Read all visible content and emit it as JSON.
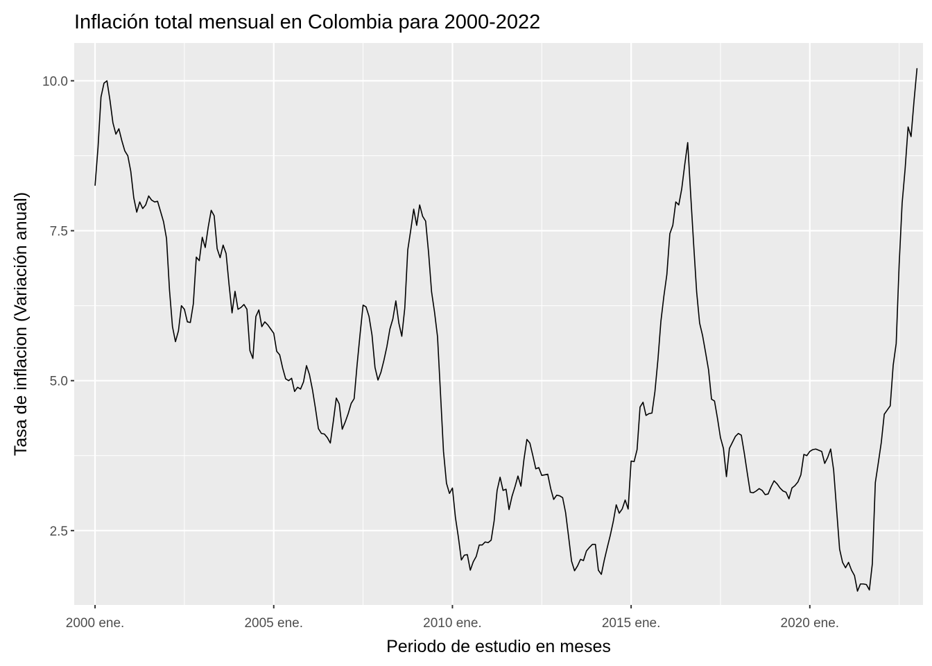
{
  "chart_data": {
    "type": "line",
    "title": "Inflación total mensual en Colombia para 2000-2022",
    "xlabel": "Periodo de estudio en meses",
    "ylabel": "Tasa de inflacion (Variación anual)",
    "x_start": "2000-01",
    "x_ticks": [
      {
        "year": 2000,
        "label": "2000 ene."
      },
      {
        "year": 2005,
        "label": "2005 ene."
      },
      {
        "year": 2010,
        "label": "2010 ene."
      },
      {
        "year": 2015,
        "label": "2015 ene."
      },
      {
        "year": 2020,
        "label": "2020 ene."
      }
    ],
    "y_ticks": [
      {
        "value": 2.5,
        "label": "2.5"
      },
      {
        "value": 5.0,
        "label": "5.0"
      },
      {
        "value": 7.5,
        "label": "7.5"
      },
      {
        "value": 10.0,
        "label": "10.0"
      }
    ],
    "xlim": [
      "1999-06",
      "2023-03"
    ],
    "ylim": [
      1.26,
      10.63
    ],
    "grid": true,
    "panel_background": "#EBEBEB",
    "grid_color": "#FFFFFF",
    "line_color": "#000000",
    "series": [
      {
        "values": [
          8.25,
          8.89,
          9.73,
          9.96,
          10.0,
          9.68,
          9.3,
          9.11,
          9.2,
          9.0,
          8.83,
          8.75,
          8.49,
          8.05,
          7.81,
          7.98,
          7.87,
          7.93,
          8.08,
          8.01,
          7.98,
          7.99,
          7.82,
          7.65,
          7.37,
          6.51,
          5.9,
          5.65,
          5.83,
          6.25,
          6.19,
          5.98,
          5.97,
          6.28,
          7.06,
          7.0,
          7.39,
          7.22,
          7.56,
          7.84,
          7.75,
          7.2,
          7.05,
          7.26,
          7.12,
          6.6,
          6.13,
          6.49,
          6.19,
          6.22,
          6.27,
          6.19,
          5.5,
          5.37,
          6.07,
          6.18,
          5.9,
          5.98,
          5.93,
          5.86,
          5.79,
          5.49,
          5.43,
          5.21,
          5.03,
          5.0,
          5.04,
          4.82,
          4.89,
          4.86,
          4.98,
          5.25,
          5.1,
          4.85,
          4.54,
          4.2,
          4.12,
          4.11,
          4.05,
          3.96,
          4.32,
          4.71,
          4.61,
          4.19,
          4.31,
          4.45,
          4.62,
          4.7,
          5.27,
          5.78,
          6.26,
          6.23,
          6.07,
          5.76,
          5.22,
          5.01,
          5.14,
          5.34,
          5.57,
          5.86,
          6.03,
          6.33,
          5.96,
          5.74,
          6.21,
          7.18,
          7.51,
          7.86,
          7.59,
          7.93,
          7.74,
          7.66,
          7.13,
          6.48,
          6.14,
          5.73,
          4.78,
          3.82,
          3.29,
          3.12,
          3.21,
          2.72,
          2.39,
          2.01,
          2.09,
          2.1,
          1.84,
          1.98,
          2.07,
          2.26,
          2.26,
          2.31,
          2.3,
          2.34,
          2.66,
          3.17,
          3.39,
          3.17,
          3.19,
          2.85,
          3.07,
          3.23,
          3.41,
          3.24,
          3.68,
          4.02,
          3.96,
          3.75,
          3.53,
          3.55,
          3.42,
          3.43,
          3.44,
          3.2,
          3.02,
          3.09,
          3.08,
          3.05,
          2.8,
          2.4,
          1.99,
          1.83,
          1.91,
          2.02,
          2.0,
          2.16,
          2.22,
          2.27,
          2.27,
          1.84,
          1.77,
          2.01,
          2.22,
          2.42,
          2.65,
          2.93,
          2.79,
          2.86,
          3.01,
          2.86,
          3.66,
          3.65,
          3.85,
          4.56,
          4.64,
          4.42,
          4.45,
          4.46,
          4.82,
          5.35,
          5.99,
          6.41,
          6.77,
          7.45,
          7.59,
          7.98,
          7.93,
          8.2,
          8.6,
          8.97,
          8.1,
          7.27,
          6.48,
          5.96,
          5.75,
          5.47,
          5.18,
          4.69,
          4.66,
          4.37,
          4.05,
          3.87,
          3.4,
          3.87,
          3.97,
          4.07,
          4.12,
          4.09,
          3.79,
          3.46,
          3.14,
          3.13,
          3.16,
          3.2,
          3.17,
          3.1,
          3.11,
          3.23,
          3.33,
          3.28,
          3.21,
          3.16,
          3.14,
          3.03,
          3.21,
          3.25,
          3.31,
          3.43,
          3.77,
          3.75,
          3.82,
          3.85,
          3.86,
          3.84,
          3.82,
          3.62,
          3.72,
          3.86,
          3.51,
          2.85,
          2.19,
          1.97,
          1.88,
          1.97,
          1.84,
          1.75,
          1.49,
          1.61,
          1.61,
          1.6,
          1.51,
          1.95,
          3.3,
          3.63,
          3.97,
          4.44,
          4.51,
          4.58,
          5.26,
          5.62,
          6.94,
          7.96,
          8.53,
          9.23,
          9.07,
          9.67,
          10.21
        ]
      }
    ]
  }
}
